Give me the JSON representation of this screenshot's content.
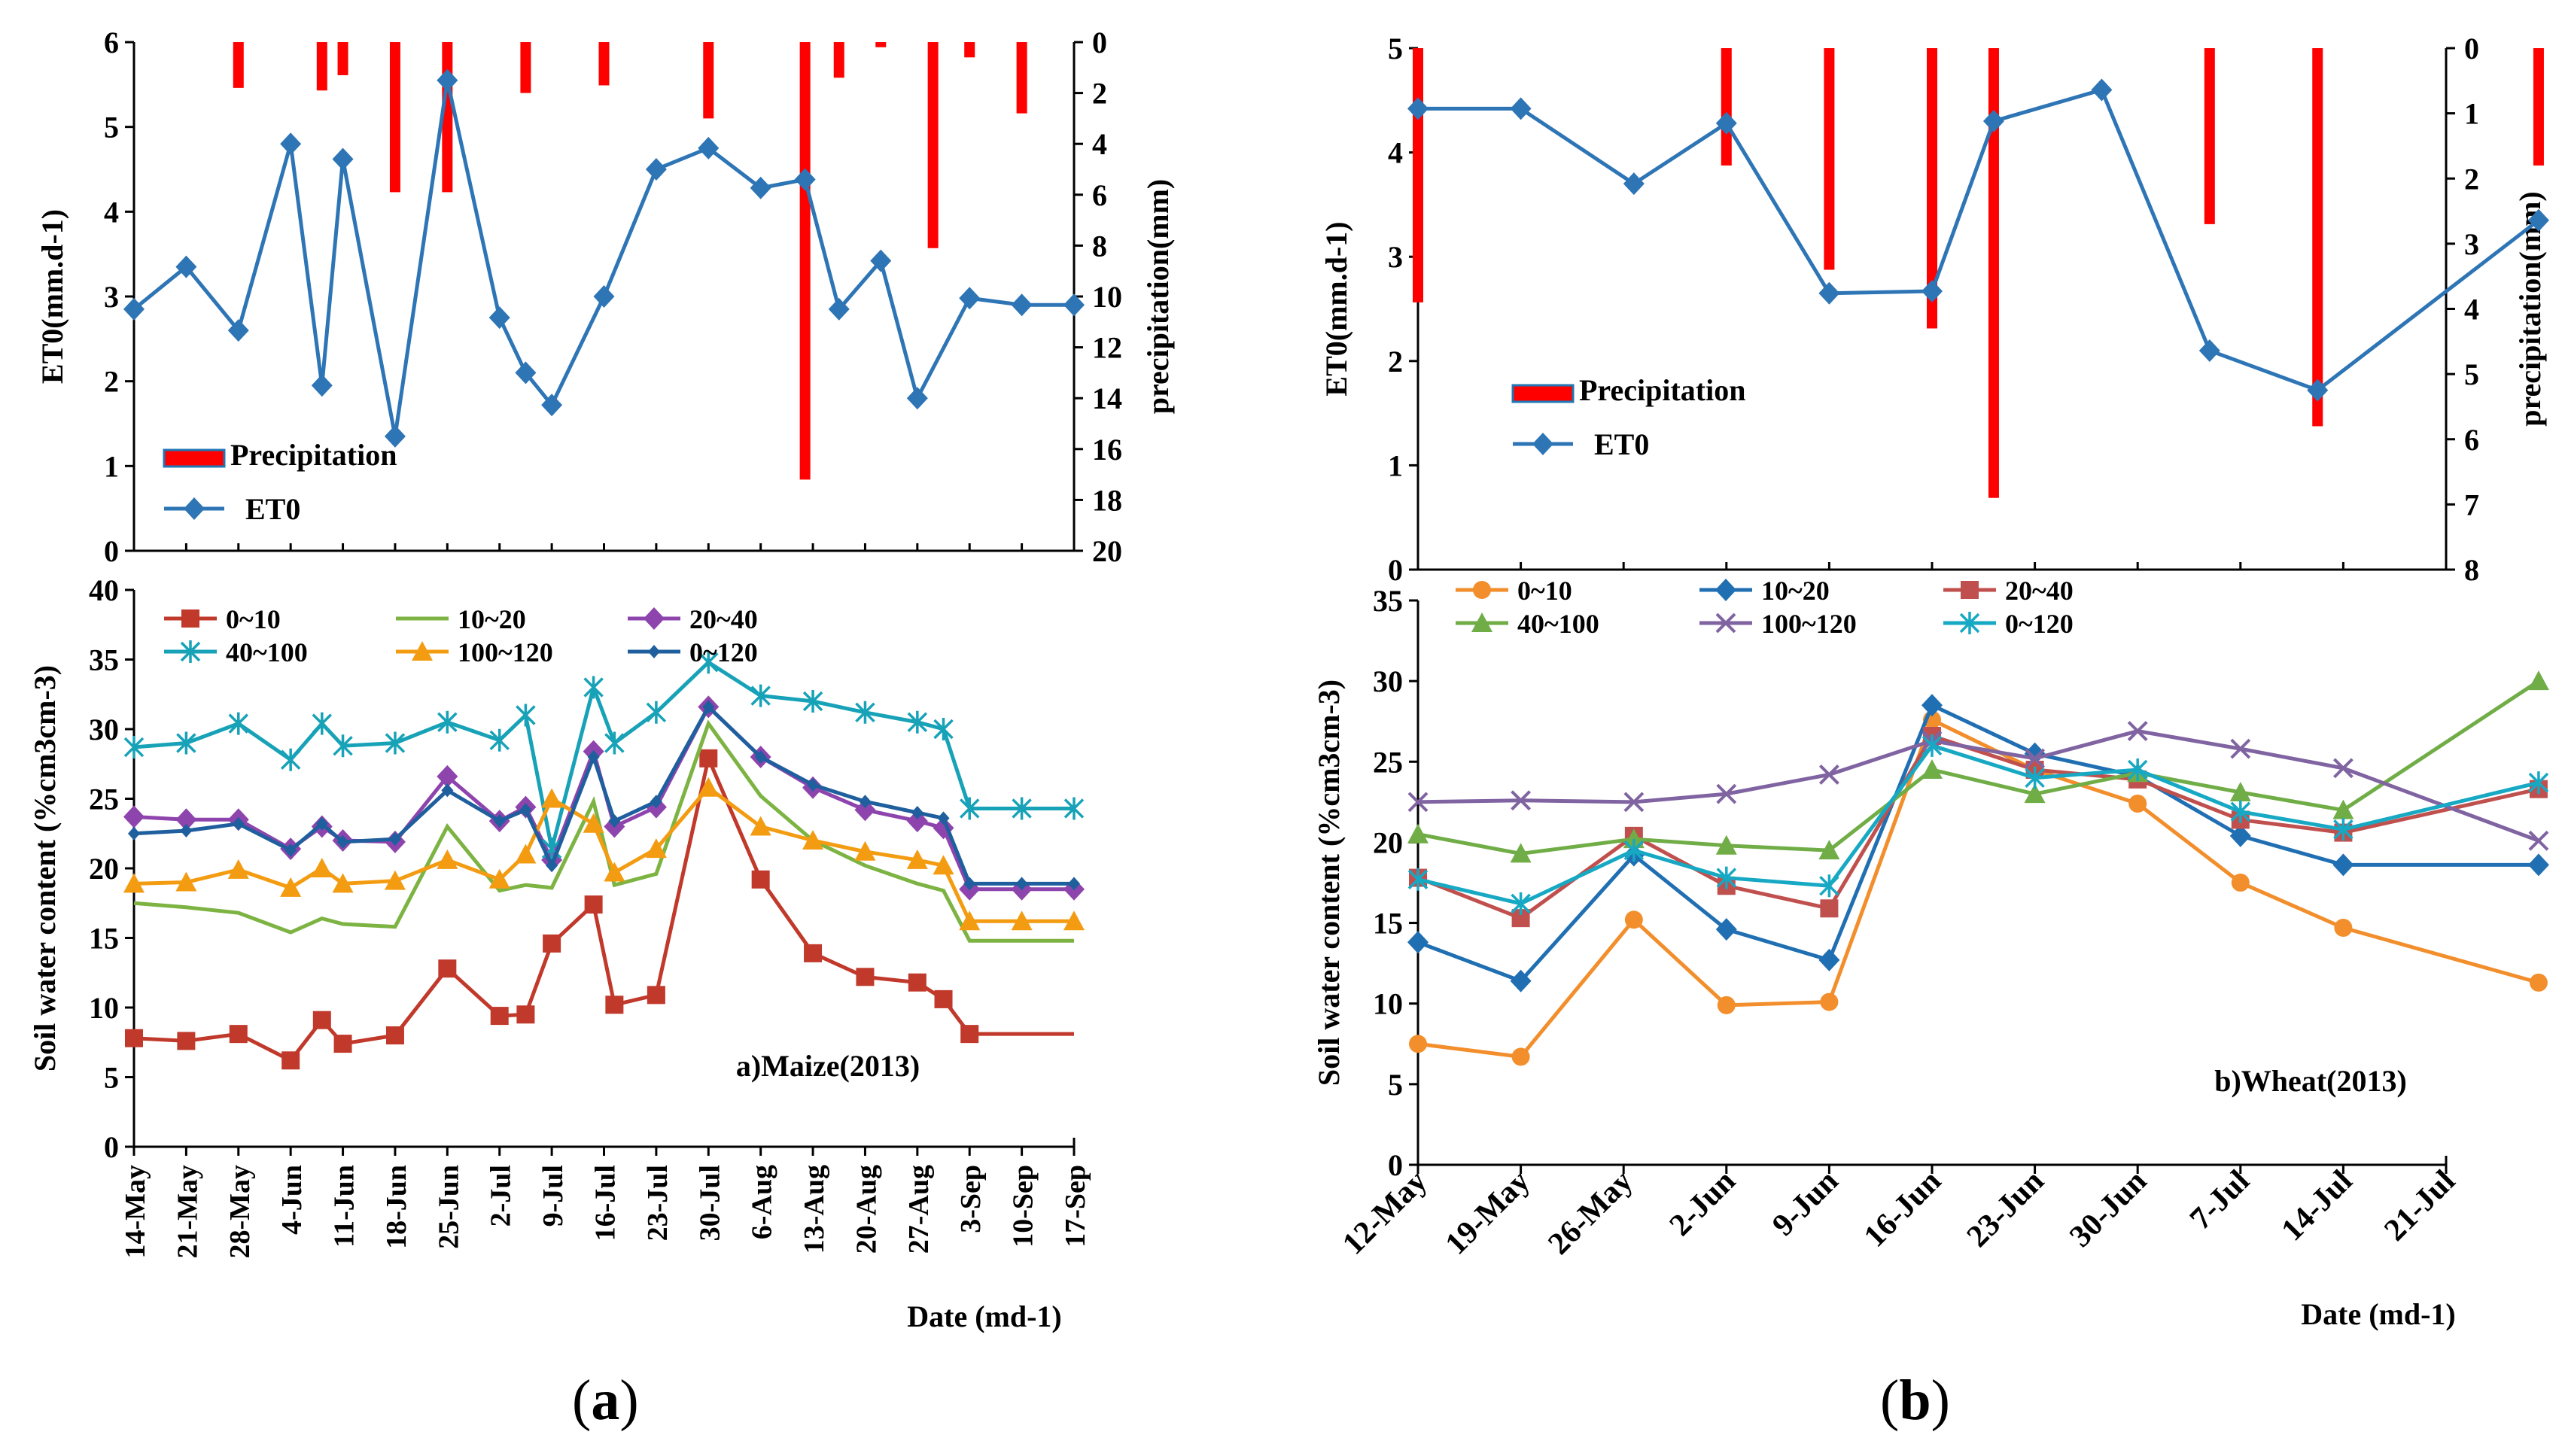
{
  "figure": {
    "caption_a": "a",
    "caption_b": "b"
  },
  "colors": {
    "precip": "#ff0000",
    "et0": "#2e75b6"
  },
  "chart_data": [
    {
      "id": "maize_top",
      "type": "bar+line",
      "panel": "a",
      "categories": [
        "14-May",
        "21-May",
        "28-May",
        "4-Jun",
        "11-Jun",
        "18-Jun",
        "25-Jun",
        "2-Jul",
        "9-Jul",
        "16-Jul",
        "23-Jul",
        "30-Jul",
        "6-Aug",
        "13-Aug",
        "20-Aug",
        "27-Aug",
        "3-Sep",
        "10-Sep",
        "17-Sep"
      ],
      "ylabel": "ET0(mm.d-1)",
      "ylabel_right": "precipitation(mm)",
      "ylim": [
        0,
        6
      ],
      "yticks": [
        0,
        1,
        2,
        3,
        4,
        5,
        6
      ],
      "ylim_right": [
        0,
        20
      ],
      "yticks_right": [
        0,
        2,
        4,
        6,
        8,
        10,
        12,
        14,
        16,
        18,
        20
      ],
      "legend": [
        "Precipitation",
        "ET0"
      ],
      "et0_x": [
        0,
        1,
        2,
        3,
        3.6,
        4,
        5,
        6,
        7,
        7.5,
        8,
        9,
        10,
        11,
        12,
        12.85,
        13.5,
        14.3,
        15,
        16,
        17,
        18
      ],
      "et0_y": [
        2.85,
        3.35,
        2.6,
        4.8,
        1.95,
        4.62,
        1.35,
        5.55,
        2.75,
        2.1,
        1.72,
        3.0,
        4.5,
        4.75,
        4.28,
        4.38,
        2.85,
        3.42,
        1.8,
        2.98,
        2.9,
        2.9
      ],
      "precip_x": [
        2,
        3.6,
        4,
        5,
        6,
        7.5,
        9,
        11,
        12.85,
        13.5,
        14.3,
        15.3,
        16,
        17
      ],
      "precip_y": [
        1.8,
        1.9,
        1.3,
        5.9,
        5.9,
        2.0,
        1.7,
        3.0,
        17.2,
        1.4,
        0.2,
        8.1,
        0.6,
        2.8
      ]
    },
    {
      "id": "maize_swc",
      "type": "line",
      "panel": "a",
      "categories": [
        "14-May",
        "21-May",
        "28-May",
        "4-Jun",
        "11-Jun",
        "18-Jun",
        "25-Jun",
        "2-Jul",
        "9-Jul",
        "16-Jul",
        "23-Jul",
        "30-Jul",
        "6-Aug",
        "13-Aug",
        "20-Aug",
        "27-Aug",
        "3-Sep",
        "10-Sep",
        "17-Sep"
      ],
      "ylabel": "Soil water content (%cm3cm-3)",
      "xlabel": "Date (md-1)",
      "ylim": [
        0,
        40
      ],
      "yticks": [
        0,
        5,
        10,
        15,
        20,
        25,
        30,
        35,
        40
      ],
      "annotation": "a)Maize(2013)",
      "x": [
        0,
        1,
        2,
        3,
        3.6,
        4,
        5,
        6,
        7,
        7.5,
        8,
        8.8,
        9.2,
        10,
        11,
        12,
        13,
        14,
        15,
        15.5,
        16,
        17,
        18
      ],
      "series": [
        {
          "name": "0~10",
          "color": "#c0392b",
          "marker": "square",
          "values": [
            7.8,
            7.6,
            8.1,
            6.2,
            9.1,
            7.4,
            8.0,
            12.8,
            9.4,
            9.5,
            14.6,
            17.4,
            10.2,
            10.9,
            27.9,
            19.2,
            13.9,
            12.2,
            11.8,
            10.6,
            8.1,
            8.1,
            8.1
          ],
          "marks": [
            0,
            1,
            2,
            3,
            4,
            5,
            6,
            7,
            8,
            9,
            10,
            11,
            12,
            13,
            14,
            15,
            16,
            17,
            18,
            19,
            20
          ]
        },
        {
          "name": "10~20",
          "color": "#7cb342",
          "marker": "none",
          "values": [
            17.5,
            17.2,
            16.8,
            15.4,
            16.4,
            16.0,
            15.8,
            23.0,
            18.4,
            18.8,
            18.6,
            24.8,
            18.8,
            19.6,
            30.4,
            25.2,
            22.0,
            20.2,
            18.9,
            18.4,
            14.8,
            14.8,
            14.8
          ]
        },
        {
          "name": "20~40",
          "color": "#8e44ad",
          "marker": "diamond",
          "values": [
            23.7,
            23.5,
            23.5,
            21.4,
            23.0,
            22.0,
            21.9,
            26.6,
            23.4,
            24.4,
            20.6,
            28.4,
            23.0,
            24.4,
            31.6,
            28.0,
            25.8,
            24.2,
            23.4,
            22.9,
            18.5,
            18.5,
            18.5
          ]
        },
        {
          "name": "40~100",
          "color": "#17a2b8",
          "marker": "star",
          "values": [
            28.7,
            29.0,
            30.4,
            27.8,
            30.4,
            28.8,
            29.0,
            30.5,
            29.2,
            31.0,
            21.4,
            33.0,
            29.0,
            31.2,
            34.8,
            32.4,
            32.0,
            31.2,
            30.5,
            30.0,
            24.3,
            24.3,
            24.3
          ]
        },
        {
          "name": "100~120",
          "color": "#f39c12",
          "marker": "triangle",
          "values": [
            18.9,
            19.0,
            19.9,
            18.6,
            20.0,
            18.9,
            19.1,
            20.6,
            19.2,
            21.0,
            25.0,
            23.2,
            19.7,
            21.4,
            25.8,
            23.0,
            22.0,
            21.2,
            20.6,
            20.2,
            16.2,
            16.2,
            16.2
          ]
        },
        {
          "name": "0~120",
          "color": "#1f5f9e",
          "marker": "diamond-small",
          "values": [
            22.5,
            22.7,
            23.2,
            21.3,
            23.2,
            21.9,
            22.1,
            25.6,
            23.4,
            24.2,
            20.2,
            28.0,
            23.4,
            24.8,
            31.6,
            28.0,
            26.0,
            24.8,
            24.0,
            23.6,
            18.9,
            18.9,
            18.9
          ]
        }
      ]
    },
    {
      "id": "wheat_top",
      "type": "bar+line",
      "panel": "b",
      "categories": [
        "12-May",
        "19-May",
        "26-May",
        "2-Jun",
        "9-Jun",
        "16-Jun",
        "23-Jun",
        "30-Jun",
        "7-Jul",
        "14-Jul",
        "21-Jul"
      ],
      "ylabel": "ET0(mm.d-1)",
      "ylabel_right": "precipitation(mm)",
      "ylim": [
        0,
        5
      ],
      "yticks": [
        0,
        1,
        2,
        3,
        4,
        5
      ],
      "ylim_right": [
        0,
        8
      ],
      "yticks_right": [
        0,
        1,
        2,
        3,
        4,
        5,
        6,
        7,
        8
      ],
      "legend": [
        "Precipitation",
        "ET0"
      ],
      "et0_x": [
        0,
        1,
        2.1,
        3,
        4,
        5,
        5.6,
        6.65,
        7.7,
        8.75,
        10.9
      ],
      "et0_y": [
        4.42,
        4.42,
        3.7,
        4.28,
        2.65,
        2.67,
        4.3,
        4.6,
        2.1,
        1.72,
        3.35
      ],
      "precip_x": [
        0,
        3,
        4,
        5,
        5.6,
        7.7,
        8.75,
        10.9
      ],
      "precip_y": [
        3.9,
        1.8,
        3.4,
        4.3,
        6.9,
        2.7,
        5.8,
        1.8
      ]
    },
    {
      "id": "wheat_swc",
      "type": "line",
      "panel": "b",
      "categories": [
        "12-May",
        "19-May",
        "26-May",
        "2-Jun",
        "9-Jun",
        "16-Jun",
        "23-Jun",
        "30-Jun",
        "7-Jul",
        "14-Jul",
        "21-Jul"
      ],
      "ylabel": "Soil water content (%cm3cm-3)",
      "xlabel": "Date (md-1)",
      "ylim": [
        0,
        35
      ],
      "yticks": [
        0,
        5,
        10,
        15,
        20,
        25,
        30,
        35
      ],
      "annotation": "b)Wheat(2013)",
      "x": [
        0,
        1,
        2.1,
        3,
        4,
        5,
        6,
        7,
        8,
        9,
        10.9
      ],
      "series": [
        {
          "name": "0~10",
          "color": "#f28e2b",
          "marker": "circle",
          "values": [
            7.5,
            6.7,
            15.2,
            9.9,
            10.1,
            27.6,
            24.5,
            22.4,
            17.5,
            14.7,
            11.3
          ]
        },
        {
          "name": "10~20",
          "color": "#1f6fb2",
          "marker": "diamond",
          "values": [
            13.8,
            11.4,
            19.2,
            14.6,
            12.7,
            28.5,
            25.5,
            24.1,
            20.4,
            18.6,
            18.6
          ]
        },
        {
          "name": "20~40",
          "color": "#c0504d",
          "marker": "square",
          "values": [
            17.8,
            15.3,
            20.4,
            17.3,
            15.9,
            26.6,
            24.5,
            23.9,
            21.4,
            20.6,
            23.3
          ]
        },
        {
          "name": "40~100",
          "color": "#70ad47",
          "marker": "triangle",
          "values": [
            20.5,
            19.3,
            20.2,
            19.8,
            19.5,
            24.5,
            23.0,
            24.3,
            23.1,
            22.0,
            30.0
          ]
        },
        {
          "name": "100~120",
          "color": "#8064a2",
          "marker": "x",
          "values": [
            22.5,
            22.6,
            22.5,
            23.0,
            24.2,
            26.3,
            25.2,
            26.9,
            25.8,
            24.6,
            20.1
          ]
        },
        {
          "name": "0~120",
          "color": "#17a8c4",
          "marker": "star",
          "values": [
            17.7,
            16.2,
            19.5,
            17.8,
            17.3,
            26.0,
            24.0,
            24.5,
            21.9,
            20.8,
            23.7
          ]
        }
      ]
    }
  ]
}
